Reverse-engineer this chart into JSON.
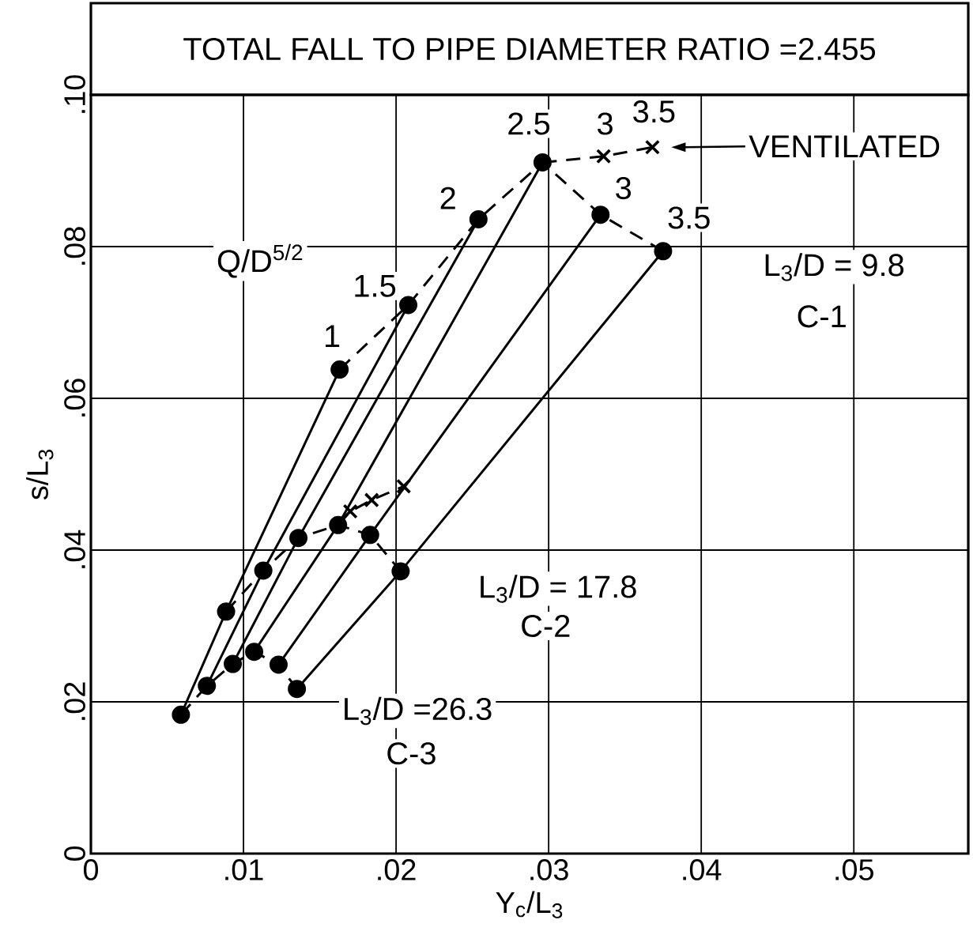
{
  "chart_data": {
    "type": "line",
    "title": "TOTAL FALL TO PIPE DIAMETER RATIO =2.455",
    "xlabel": "Y$_{c}$/L$_{3}$",
    "ylabel": "s/L$_{3}$",
    "xlim": [
      0,
      0.0575
    ],
    "ylim": [
      0,
      0.1
    ],
    "xticks": [
      {
        "value": 0,
        "label": "0"
      },
      {
        "value": 0.01,
        "label": ".01"
      },
      {
        "value": 0.02,
        "label": ".02"
      },
      {
        "value": 0.03,
        "label": ".03"
      },
      {
        "value": 0.04,
        "label": ".04"
      },
      {
        "value": 0.05,
        "label": ".05"
      }
    ],
    "yticks": [
      {
        "value": 0,
        "label": "0"
      },
      {
        "value": 0.02,
        "label": ".02"
      },
      {
        "value": 0.04,
        "label": ".04"
      },
      {
        "value": 0.06,
        "label": ".06"
      },
      {
        "value": 0.08,
        "label": ".08"
      },
      {
        "value": 0.1,
        "label": ".10"
      }
    ],
    "grid": true,
    "series": [
      {
        "color": "#000000",
        "marker": "circle",
        "line_style": "solid",
        "x": [
          0.0059,
          0.00886,
          0.0163
        ],
        "values": [
          0.0183,
          0.0319,
          0.0638
        ]
      },
      {
        "color": "#000000",
        "marker": "circle",
        "line_style": "solid",
        "x": [
          0.0076,
          0.0113,
          0.0208
        ],
        "values": [
          0.0221,
          0.0373,
          0.0723
        ]
      },
      {
        "color": "#000000",
        "marker": "circle",
        "line_style": "solid",
        "x": [
          0.0093,
          0.0136,
          0.0254
        ],
        "values": [
          0.025,
          0.0416,
          0.0836
        ]
      },
      {
        "color": "#000000",
        "marker": "circle",
        "line_style": "solid",
        "x": [
          0.0107,
          0.0162,
          0.0296
        ],
        "values": [
          0.0266,
          0.0433,
          0.0911
        ]
      },
      {
        "color": "#000000",
        "marker": "circle",
        "line_style": "solid",
        "x": [
          0.0123,
          0.0183,
          0.0334
        ],
        "values": [
          0.0249,
          0.042,
          0.0842
        ]
      },
      {
        "color": "#000000",
        "marker": "circle",
        "line_style": "solid",
        "x": [
          0.0135,
          0.0203,
          0.0375
        ],
        "values": [
          0.0217,
          0.0372,
          0.0794
        ]
      },
      {
        "color": "#000000",
        "line_style": "dashed",
        "x": [
          0.0163,
          0.0208,
          0.0254,
          0.0296,
          0.0334,
          0.0375
        ],
        "values": [
          0.0638,
          0.0723,
          0.0836,
          0.0911,
          0.0842,
          0.0794
        ]
      },
      {
        "color": "#000000",
        "line_style": "dashed",
        "x": [
          0.00886,
          0.0113,
          0.0136,
          0.0162,
          0.0183,
          0.0203
        ],
        "values": [
          0.0319,
          0.0373,
          0.0416,
          0.0433,
          0.042,
          0.0372
        ]
      },
      {
        "color": "#000000",
        "line_style": "dashed",
        "x": [
          0.0059,
          0.0076,
          0.0093,
          0.0107,
          0.0123,
          0.0135
        ],
        "values": [
          0.0183,
          0.0221,
          0.025,
          0.0266,
          0.0249,
          0.0217
        ]
      },
      {
        "color": "#000000",
        "marker": "cross",
        "line_style": "dashed",
        "x": [
          0.0296,
          0.0336,
          0.0368
        ],
        "values": [
          0.0911,
          0.0919,
          0.0931
        ]
      },
      {
        "color": "#000000",
        "marker": "cross",
        "line_style": "dashed",
        "x": [
          0.0162,
          0.017,
          0.0184,
          0.0205
        ],
        "values": [
          0.0433,
          0.0451,
          0.0466,
          0.0484
        ]
      }
    ],
    "annotations": [
      "1",
      "1.5",
      "2",
      "2.5",
      "3",
      "3.5",
      "3",
      "3.5",
      "VENTILATED",
      "Q/D$^{5/2}$",
      "L$_{3}$/D = 9.8",
      "C-1",
      "L$_{3}$/D = 17.8",
      "C-2",
      "L$_{3}$/D =26.3",
      "C-3"
    ]
  }
}
